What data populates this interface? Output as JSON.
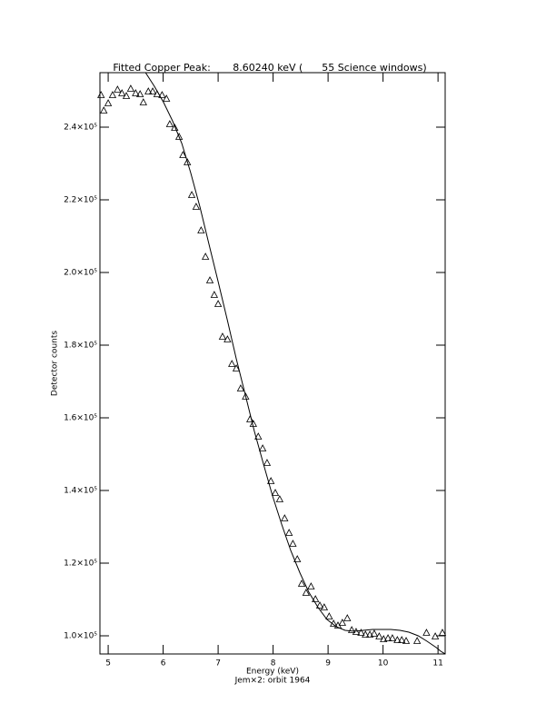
{
  "chart_data": {
    "type": "scatter",
    "title": "Fitted Copper Peak:       8.60240 keV (      55 Science windows)",
    "x_label": "Energy (keV)",
    "subtitle": "Jem×2: orbit 1964",
    "y_label": "Detector counts",
    "xlim": [
      4.85,
      11.13
    ],
    "ylim": [
      95000,
      255000
    ],
    "xticks": [
      5,
      6,
      7,
      8,
      9,
      10,
      11
    ],
    "yticks": [
      {
        "value": 100000,
        "label": "1.0×10⁵"
      },
      {
        "value": 120000,
        "label": "1.2×10⁵"
      },
      {
        "value": 140000,
        "label": "1.4×10⁵"
      },
      {
        "value": 160000,
        "label": "1.6×10⁵"
      },
      {
        "value": 180000,
        "label": "1.8×10⁵"
      },
      {
        "value": 200000,
        "label": "2.0×10⁵"
      },
      {
        "value": 220000,
        "label": "2.2×10⁵"
      },
      {
        "value": 240000,
        "label": "2.4×10⁵"
      }
    ],
    "series": [
      {
        "marker": "triangle",
        "color": "#000000",
        "x": [
          4.87,
          4.92,
          5.0,
          5.08,
          5.17,
          5.25,
          5.33,
          5.41,
          5.5,
          5.58,
          5.64,
          5.73,
          5.81,
          5.89,
          5.98,
          6.06,
          6.12,
          6.21,
          6.29,
          6.36,
          6.44,
          6.52,
          6.6,
          6.69,
          6.77,
          6.85,
          6.93,
          7.0,
          7.08,
          7.17,
          7.25,
          7.33,
          7.41,
          7.5,
          7.58,
          7.64,
          7.73,
          7.81,
          7.89,
          7.96,
          8.04,
          8.12,
          8.21,
          8.29,
          8.36,
          8.44,
          8.52,
          8.6,
          8.69,
          8.77,
          8.85,
          8.93,
          9.02,
          9.1,
          9.18,
          9.26,
          9.35,
          9.43,
          9.51,
          9.6,
          9.68,
          9.76,
          9.84,
          9.93,
          10.01,
          10.09,
          10.17,
          10.26,
          10.34,
          10.42,
          10.62,
          10.79,
          10.95,
          11.08
        ],
        "values": [
          248750,
          244500,
          246500,
          248750,
          250250,
          249250,
          248500,
          250500,
          249250,
          249000,
          246750,
          249750,
          249750,
          249000,
          248750,
          247750,
          240750,
          239750,
          237250,
          232250,
          230250,
          221250,
          218000,
          211500,
          204250,
          197750,
          193750,
          191250,
          182250,
          181500,
          174750,
          173500,
          168000,
          165750,
          159500,
          158250,
          154750,
          151500,
          147500,
          142500,
          139250,
          137500,
          132250,
          128250,
          125250,
          121000,
          114250,
          111750,
          113500,
          110000,
          108250,
          107750,
          105250,
          103250,
          102750,
          103500,
          104750,
          101500,
          101000,
          100750,
          100250,
          100250,
          100500,
          99750,
          99000,
          99250,
          99250,
          98750,
          98750,
          98500,
          98500,
          100750,
          99750,
          100750
        ]
      },
      {
        "marker": "line",
        "color": "#000000",
        "x": [
          5.68,
          5.84,
          6.01,
          6.17,
          6.34,
          6.5,
          6.67,
          6.83,
          7.0,
          7.17,
          7.33,
          7.5,
          7.66,
          7.83,
          7.99,
          8.16,
          8.32,
          8.49,
          8.65,
          8.82,
          8.98,
          9.15,
          9.31,
          9.48,
          9.64,
          9.81,
          9.98,
          10.14,
          10.31,
          10.47,
          10.64,
          10.8,
          10.97,
          11.05,
          11.13
        ],
        "values": [
          255000,
          251250,
          246750,
          241750,
          235500,
          227500,
          218000,
          208000,
          197500,
          186750,
          176250,
          166000,
          156250,
          147000,
          138500,
          130500,
          123500,
          117250,
          112000,
          107750,
          104500,
          102500,
          101500,
          101250,
          101500,
          101750,
          101750,
          101750,
          101500,
          101000,
          100000,
          98500,
          96750,
          95750,
          95000
        ]
      }
    ]
  }
}
